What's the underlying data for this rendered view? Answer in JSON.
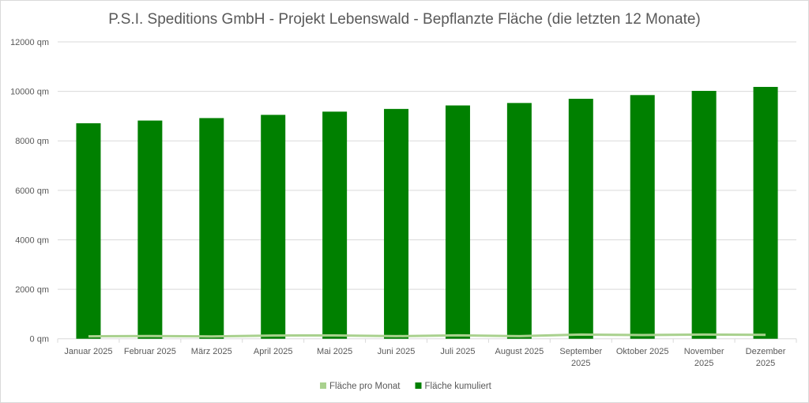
{
  "chart_data": {
    "type": "bar",
    "title": "P.S.I. Speditions GmbH - Projekt Lebenswald - Bepflanzte Fläche (die letzten 12 Monate)",
    "categories": [
      [
        "Januar 2025"
      ],
      [
        "Februar 2025"
      ],
      [
        "März 2025"
      ],
      [
        "April 2025"
      ],
      [
        "Mai 2025"
      ],
      [
        "Juni 2025"
      ],
      [
        "Juli 2025"
      ],
      [
        "August 2025"
      ],
      [
        "September",
        "2025"
      ],
      [
        "Oktober 2025"
      ],
      [
        "November",
        "2025"
      ],
      [
        "Dezember",
        "2025"
      ]
    ],
    "yticks": [
      "0 qm",
      "2000 qm",
      "4000 qm",
      "6000 qm",
      "8000 qm",
      "10000 qm",
      "12000 qm"
    ],
    "ylim": [
      0,
      12000
    ],
    "unit": "qm",
    "grid": true,
    "legend_position": "bottom",
    "series": [
      {
        "name": "Fläche pro Monat",
        "type": "line",
        "color": "#a9d18e",
        "values": [
          100,
          110,
          95,
          130,
          135,
          105,
          140,
          105,
          170,
          150,
          170,
          160
        ]
      },
      {
        "name": "Fläche kumuliert",
        "type": "bar",
        "color": "#008000",
        "values": [
          8710,
          8820,
          8920,
          9050,
          9180,
          9290,
          9430,
          9530,
          9700,
          9850,
          10020,
          10180
        ]
      }
    ]
  }
}
